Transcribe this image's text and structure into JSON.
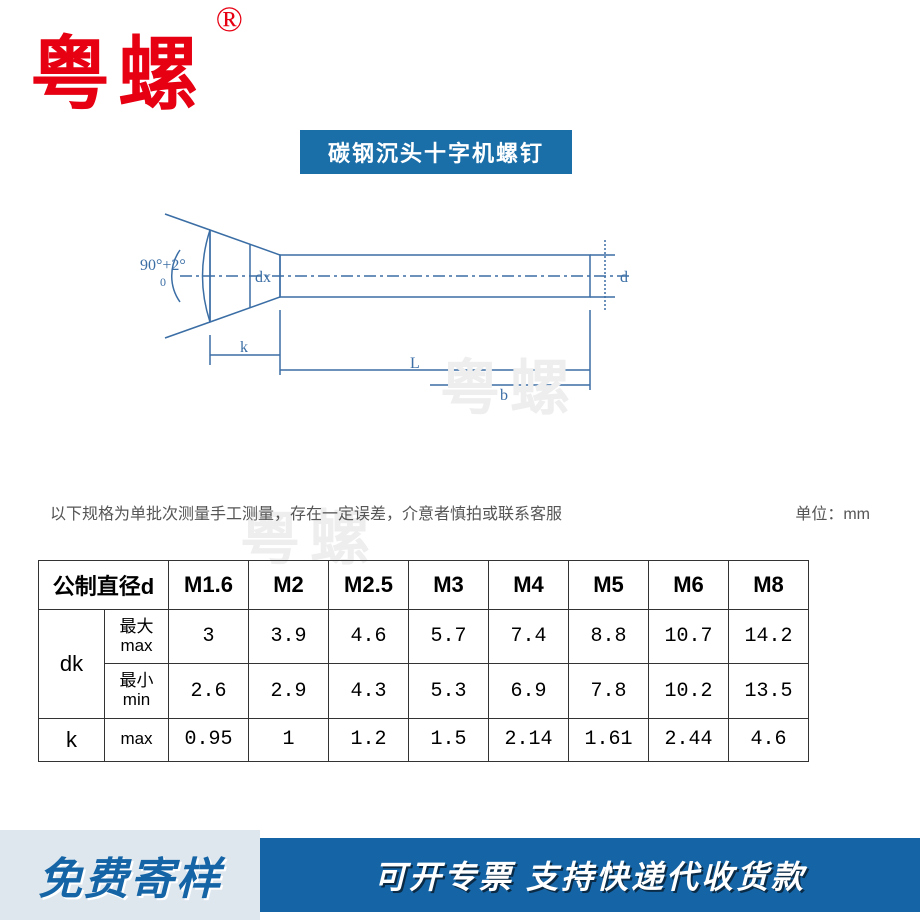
{
  "brand": {
    "text": "粤螺",
    "reg": "®",
    "color": "#e60012"
  },
  "title": {
    "text": "碳钢沉头十字机螺钉",
    "bg": "#1b6fa8",
    "fg": "#ffffff"
  },
  "diagram": {
    "stroke": "#3b6ea5",
    "angle_label": "90°+2°",
    "angle_sub": "0",
    "dx": "dx",
    "d": "d",
    "k": "k",
    "L": "L",
    "b": "b"
  },
  "watermark": {
    "text": "粤螺",
    "color": "#eeeeee"
  },
  "note": "以下规格为单批次测量手工测量，存在一定误差，介意者慎拍或联系客服",
  "unit": "单位：mm",
  "note_color": "#555555",
  "table": {
    "border_color": "#333333",
    "header_label": "公制直径d",
    "sizes": [
      "M1.6",
      "M2",
      "M2.5",
      "M3",
      "M4",
      "M5",
      "M6",
      "M8"
    ],
    "rows": [
      {
        "group": "dk",
        "sub": "最大\nmax",
        "vals": [
          "3",
          "3.9",
          "4.6",
          "5.7",
          "7.4",
          "8.8",
          "10.7",
          "14.2"
        ]
      },
      {
        "group": "",
        "sub": "最小\nmin",
        "vals": [
          "2.6",
          "2.9",
          "4.3",
          "5.3",
          "6.9",
          "7.8",
          "10.2",
          "13.5"
        ]
      },
      {
        "group": "k",
        "sub": "max",
        "vals": [
          "0.95",
          "1",
          "1.2",
          "1.5",
          "2.14",
          "1.61",
          "2.44",
          "4.6"
        ]
      }
    ]
  },
  "footer": {
    "left_bg": "#dfe7ee",
    "left_text": "免费寄样",
    "left_color": "#1565a6",
    "right_bg": "#1565a6",
    "right_text": "可开专票 支持快递代收货款",
    "right_color": "#ffffff",
    "shadow_color": "#0a2a45"
  }
}
